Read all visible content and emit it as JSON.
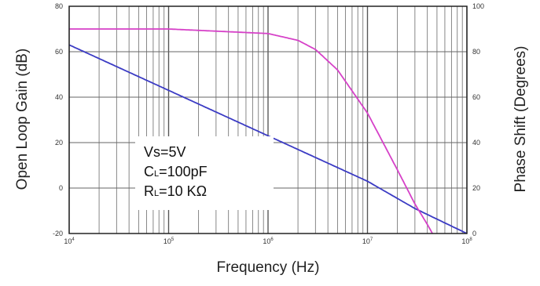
{
  "chart_data": {
    "type": "line",
    "xlabel": "Frequency (Hz)",
    "ylabel_left": "Open Loop Gain (dB)",
    "ylabel_right": "Phase Shift (Degrees)",
    "x_scale": "log",
    "xlim": [
      10000,
      100000000
    ],
    "ylim_left": [
      -20,
      80
    ],
    "ylim_right": [
      0,
      100
    ],
    "grid": true,
    "x_ticks": [
      {
        "value": 10000,
        "base": "10",
        "exp": "4"
      },
      {
        "value": 100000,
        "base": "10",
        "exp": "5"
      },
      {
        "value": 1000000,
        "base": "10",
        "exp": "6"
      },
      {
        "value": 10000000,
        "base": "10",
        "exp": "7"
      },
      {
        "value": 100000000,
        "base": "10",
        "exp": "8"
      }
    ],
    "y_left_ticks": [
      "-20",
      "0",
      "20",
      "40",
      "60",
      "80"
    ],
    "y_right_ticks": [
      "0",
      "20",
      "40",
      "60",
      "80",
      "100"
    ],
    "annotations": [
      {
        "main": "Vs=5V",
        "sub": ""
      },
      {
        "main": "C",
        "sub": "L",
        "rest": "=100pF"
      },
      {
        "main": "R",
        "sub": "L",
        "rest": "=10 KΩ"
      }
    ],
    "series": [
      {
        "axis": "left",
        "color": "#3b3bc4",
        "x": [
          10000,
          100000,
          1000000,
          10000000,
          30000000,
          100000000
        ],
        "y": [
          63,
          43,
          23,
          3,
          -9,
          -20
        ]
      },
      {
        "axis": "right",
        "color": "#d641c8",
        "x": [
          10000,
          100000,
          1000000,
          2000000,
          3000000,
          5000000,
          10000000,
          20000000,
          30000000,
          40000000,
          45000000
        ],
        "y": [
          90,
          90,
          88,
          85,
          81,
          72,
          53,
          28,
          13,
          4,
          0
        ]
      }
    ]
  }
}
